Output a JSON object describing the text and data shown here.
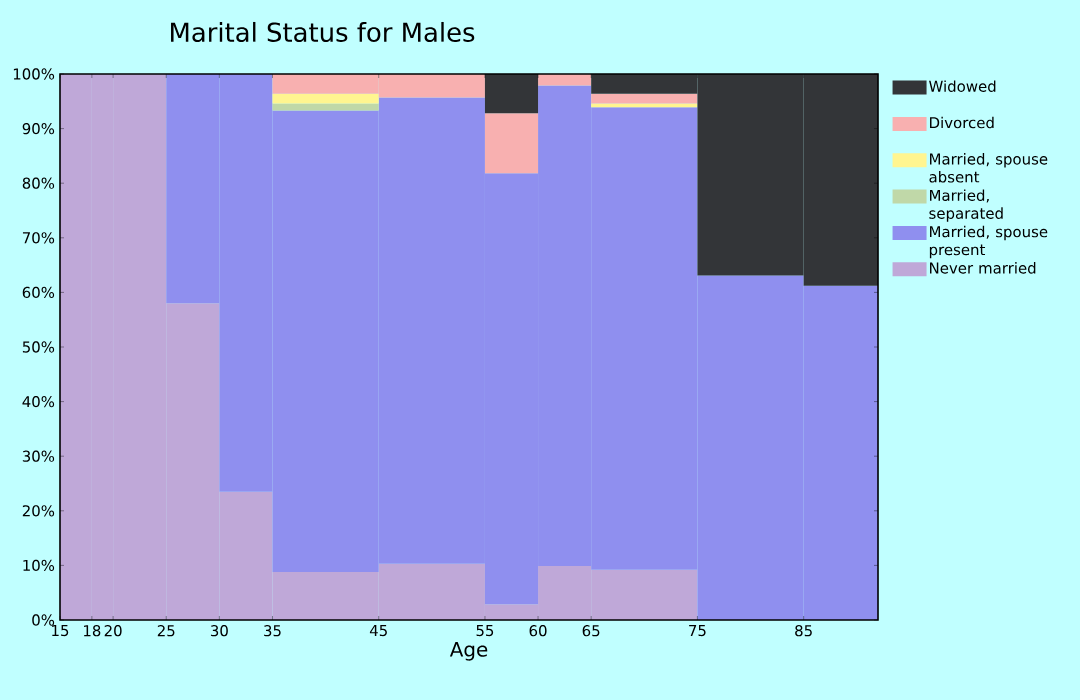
{
  "chart_data": {
    "type": "bar",
    "stacked": true,
    "title": "Marital Status for Males",
    "xlabel": "Age",
    "x": [
      16.5,
      19,
      22.5,
      27.5,
      32.5,
      40,
      50,
      57.5,
      62.5,
      70,
      80,
      88.5
    ],
    "xlim": [
      15,
      92
    ],
    "xticks": [
      15,
      18,
      20,
      25,
      30,
      35,
      45,
      55,
      60,
      65,
      75,
      85
    ],
    "ylim": [
      0,
      100
    ],
    "yticks": [
      {
        "value": 0,
        "label": "0%"
      },
      {
        "value": 10,
        "label": "10%"
      },
      {
        "value": 20,
        "label": "20%"
      },
      {
        "value": 30,
        "label": "30%"
      },
      {
        "value": 40,
        "label": "40%"
      },
      {
        "value": 50,
        "label": "50%"
      },
      {
        "value": 60,
        "label": "60%"
      },
      {
        "value": 70,
        "label": "70%"
      },
      {
        "value": 80,
        "label": "80%"
      },
      {
        "value": 90,
        "label": "90%"
      },
      {
        "value": 100,
        "label": "100%"
      }
    ],
    "legend": "right",
    "grid": false,
    "series": [
      {
        "name": "Never married",
        "color": "#bfa8d8",
        "values": [
          100,
          100,
          100,
          58,
          23.5,
          8.8,
          10.3,
          2.9,
          9.9,
          9.2,
          null,
          null
        ]
      },
      {
        "name": "Married, spouse present",
        "color": "#8f8fef",
        "values": [
          null,
          null,
          null,
          42,
          76.5,
          84.5,
          85.4,
          78.9,
          88,
          84.7,
          63.1,
          61.2
        ]
      },
      {
        "name": "Married, separated",
        "color": "#c0d8a8",
        "values": [
          null,
          null,
          null,
          null,
          null,
          1.3,
          null,
          null,
          null,
          null,
          null,
          null
        ]
      },
      {
        "name": "Married, spouse absent",
        "color": "#fff590",
        "values": [
          null,
          null,
          null,
          null,
          null,
          1.8,
          null,
          null,
          null,
          0.7,
          null,
          null
        ]
      },
      {
        "name": "Divorced",
        "color": "#f8b0b0",
        "values": [
          null,
          null,
          null,
          null,
          null,
          3.6,
          4.3,
          11,
          2.1,
          1.8,
          null,
          null
        ]
      },
      {
        "name": "Widowed",
        "color": "#333538",
        "values": [
          null,
          null,
          null,
          null,
          null,
          null,
          null,
          7.2,
          null,
          3.6,
          36.9,
          38.8
        ]
      }
    ]
  }
}
